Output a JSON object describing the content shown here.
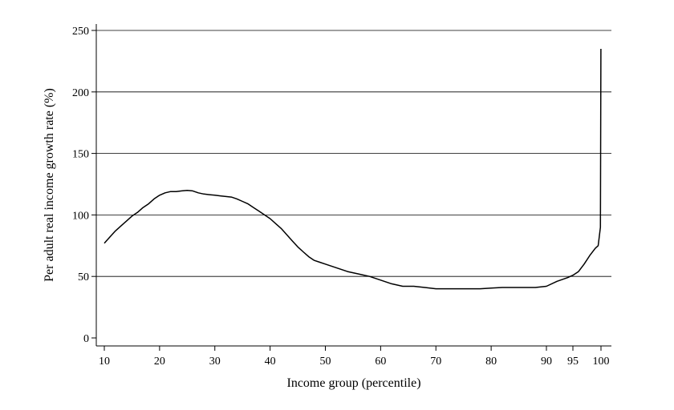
{
  "chart_data": {
    "type": "line",
    "xlabel": "Income group (percentile)",
    "ylabel": "Per adult real income growth rate (%)",
    "x_ticks": [
      10,
      20,
      30,
      40,
      50,
      60,
      70,
      80,
      90,
      95,
      100
    ],
    "y_ticks": [
      0,
      50,
      100,
      150,
      200,
      250
    ],
    "xlim": [
      9,
      102
    ],
    "ylim": [
      -5,
      257
    ],
    "grid": "horizontal",
    "colors": {
      "line": "#000000",
      "grid": "#000000",
      "background": "#ffffff"
    },
    "series": [
      {
        "x": [
          10,
          11,
          12,
          13,
          14,
          15,
          16,
          17,
          18,
          19,
          20,
          21,
          22,
          23,
          24,
          25,
          26,
          27,
          28,
          29,
          30,
          31,
          32,
          33,
          34,
          35,
          36,
          37,
          38,
          39,
          40,
          41,
          42,
          43,
          44,
          45,
          46,
          47,
          48,
          49,
          50,
          52,
          54,
          56,
          58,
          60,
          62,
          64,
          66,
          68,
          70,
          72,
          74,
          76,
          78,
          80,
          82,
          84,
          86,
          88,
          90,
          92,
          94,
          95,
          96,
          97,
          98,
          99,
          99.5,
          99.9,
          99.99
        ],
        "y": [
          77,
          82,
          87,
          91,
          95,
          99,
          102,
          106,
          109,
          113,
          116,
          118,
          119,
          119,
          119.5,
          120,
          119.5,
          118,
          117,
          116.5,
          116,
          115.5,
          115,
          114.5,
          113,
          111,
          109,
          106,
          103,
          100,
          97,
          93,
          89,
          84,
          79,
          74,
          70,
          66,
          63,
          61.5,
          60,
          57,
          54,
          52,
          50,
          47,
          44,
          42,
          42,
          41,
          40,
          40,
          40,
          40,
          40,
          40.5,
          41,
          41,
          41,
          41,
          42,
          46,
          49,
          51,
          54,
          60,
          67,
          73,
          75,
          90,
          235
        ]
      }
    ]
  }
}
